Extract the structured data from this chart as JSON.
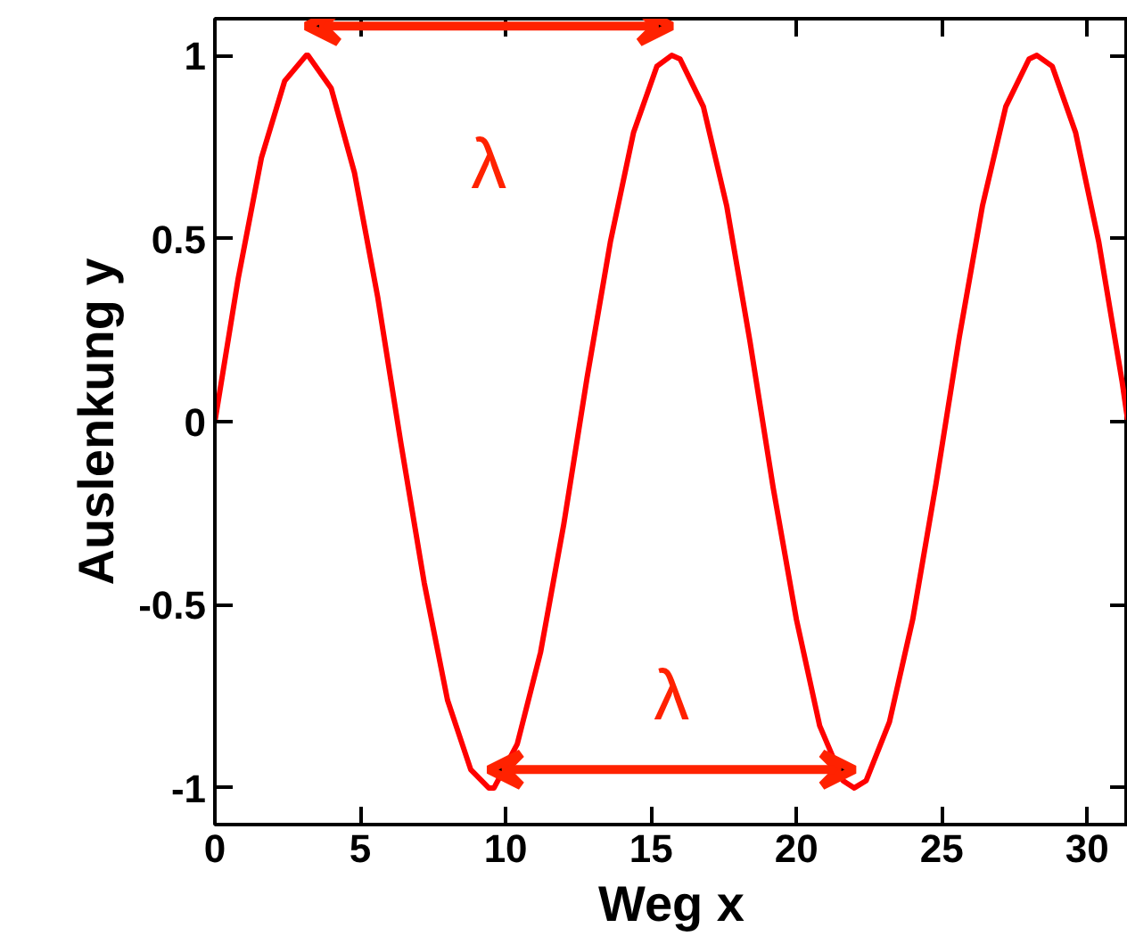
{
  "chart_data": {
    "type": "line",
    "xlabel": "Weg x",
    "ylabel": "Auslenkung y",
    "x": [
      0,
      0.8,
      1.6,
      2.4,
      3.14,
      3.2,
      4.0,
      4.8,
      5.6,
      6.4,
      7.2,
      8.0,
      8.8,
      9.42,
      9.6,
      10.4,
      11.2,
      12.0,
      12.8,
      13.6,
      14.4,
      15.2,
      15.71,
      16.0,
      16.8,
      17.6,
      18.4,
      19.2,
      20.0,
      20.8,
      21.6,
      21.99,
      22.4,
      23.2,
      24.0,
      24.8,
      25.6,
      26.4,
      27.2,
      28.0,
      28.27,
      28.8,
      29.6,
      30.4,
      31.2,
      31.4
    ],
    "series": [
      {
        "color": "#ff0000",
        "values": [
          0,
          0.39,
          0.72,
          0.93,
          1.0,
          1.0,
          0.91,
          0.68,
          0.34,
          -0.06,
          -0.44,
          -0.76,
          -0.95,
          -1.0,
          -1.0,
          -0.88,
          -0.63,
          -0.28,
          0.12,
          0.49,
          0.79,
          0.97,
          1.0,
          0.99,
          0.86,
          0.59,
          0.22,
          -0.18,
          -0.54,
          -0.83,
          -0.98,
          -1.0,
          -0.98,
          -0.82,
          -0.54,
          -0.17,
          0.23,
          0.59,
          0.86,
          0.99,
          1.0,
          0.97,
          0.79,
          0.49,
          0.11,
          0.0
        ]
      }
    ],
    "xlim": [
      0,
      31.4
    ],
    "ylim": [
      -1.1,
      1.1
    ],
    "xticks": [
      0,
      5,
      10,
      15,
      20,
      25,
      30
    ],
    "yticks": [
      -1,
      -0.5,
      0,
      0.5,
      1
    ],
    "grid": false,
    "marker": "none",
    "line_style": "solid",
    "annotations": [
      "λ",
      "λ"
    ]
  }
}
